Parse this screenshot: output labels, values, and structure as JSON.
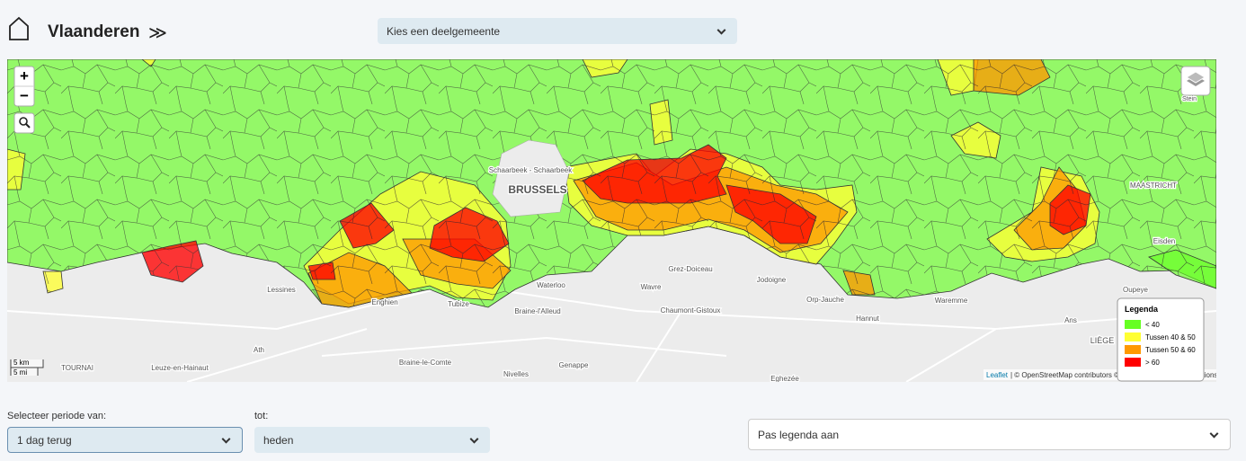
{
  "header": {
    "title": "Vlaanderen",
    "deelgemeente_placeholder": "Kies een deelgemeente"
  },
  "map": {
    "labels": [
      "BRUSSELS",
      "Schaarbeek - Schaarbeek",
      "MAASTRICHT",
      "Waterloo",
      "Wavre",
      "Grez-Doiceau",
      "Jodoigne",
      "Orp-Jauche",
      "Braine-l'Alleud",
      "Chaumont-Gistoux",
      "Hannut",
      "Waremme",
      "LIÈGE",
      "Ans",
      "Oupeye",
      "Eisden",
      "Lessines",
      "Tubize",
      "Enghien",
      "Ath",
      "TOURNAI",
      "Nivelles",
      "Genappe",
      "Braine-le-Comte",
      "Leuze-en-Hainaut",
      "Stein",
      "Eghezée"
    ],
    "legend": {
      "title": "Legenda",
      "items": [
        {
          "label": "< 40",
          "color": "#66ff22"
        },
        {
          "label": "Tussen 40 & 50",
          "color": "#ffff33"
        },
        {
          "label": "Tussen 50 & 60",
          "color": "#ff9900"
        },
        {
          "label": "> 60",
          "color": "#ff0000"
        }
      ]
    },
    "scale": {
      "km": "5 km",
      "mi": "5 mi"
    },
    "attribution": {
      "leaflet": "Leaflet",
      "rest": "| © OpenStreetMap contributors © CartoDB, CartoDB attributions"
    }
  },
  "controls": {
    "from_label": "Selecteer periode van:",
    "from_value": "1 dag terug",
    "to_label": "tot:",
    "to_value": "heden",
    "legend_select": "Pas legenda aan"
  }
}
